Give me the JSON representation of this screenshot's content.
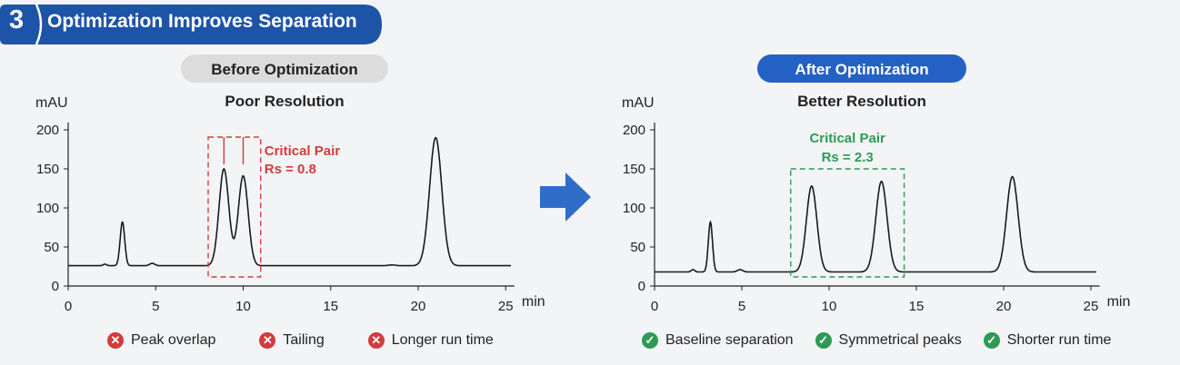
{
  "header": {
    "step_number": "3",
    "title": "Optimization Improves Separation",
    "banner_color": "#1d54a8"
  },
  "colors": {
    "bad": "#d23c3c",
    "good": "#2e9a55",
    "arrow": "#2e6ec8",
    "pill_gray": "#dcdcdc",
    "pill_blue": "#2361c4"
  },
  "chart_data": [
    {
      "type": "line",
      "badge": "Before Optimization",
      "title": "Poor Resolution",
      "ylabel": "mAU",
      "xlabel": "min",
      "xlim": [
        0,
        25.5
      ],
      "ylim": [
        0,
        200
      ],
      "xticks": [
        0,
        5,
        10,
        15,
        20,
        25
      ],
      "yticks": [
        0,
        50,
        100,
        150,
        200
      ],
      "baseline": 26,
      "peaks": [
        {
          "rt": 3.1,
          "height": 82,
          "width": 0.13
        },
        {
          "rt": 8.9,
          "height": 150,
          "width": 0.28
        },
        {
          "rt": 10.0,
          "height": 141,
          "width": 0.28
        },
        {
          "rt": 21.0,
          "height": 190,
          "width": 0.35
        },
        {
          "rt": 2.1,
          "height": 28,
          "width": 0.1
        },
        {
          "rt": 4.8,
          "height": 29,
          "width": 0.15
        },
        {
          "rt": 18.5,
          "height": 27,
          "width": 0.2
        }
      ],
      "annotation": {
        "label": "Critical Pair",
        "value": "Rs = 0.8",
        "x_range": [
          8,
          11
        ],
        "color": "#d23c3c"
      },
      "notes": [
        "Peak overlap",
        "Tailing",
        "Longer run time"
      ]
    },
    {
      "type": "line",
      "badge": "After Optimization",
      "title": "Better Resolution",
      "ylabel": "mAU",
      "xlabel": "min",
      "xlim": [
        0,
        25.5
      ],
      "ylim": [
        0,
        200
      ],
      "xticks": [
        0,
        5,
        10,
        15,
        20,
        25
      ],
      "yticks": [
        0,
        50,
        100,
        150,
        200
      ],
      "baseline": 18,
      "peaks": [
        {
          "rt": 3.2,
          "height": 82,
          "width": 0.12
        },
        {
          "rt": 9.0,
          "height": 128,
          "width": 0.3
        },
        {
          "rt": 13.0,
          "height": 134,
          "width": 0.32
        },
        {
          "rt": 20.5,
          "height": 140,
          "width": 0.33
        },
        {
          "rt": 2.2,
          "height": 21,
          "width": 0.1
        },
        {
          "rt": 4.9,
          "height": 21,
          "width": 0.15
        }
      ],
      "annotation": {
        "label": "Critical Pair",
        "value": "Rs = 2.3",
        "x_range": [
          7.8,
          14.3
        ],
        "color": "#2e9a55"
      },
      "notes": [
        "Baseline separation",
        "Symmetrical peaks",
        "Shorter run time"
      ]
    }
  ]
}
